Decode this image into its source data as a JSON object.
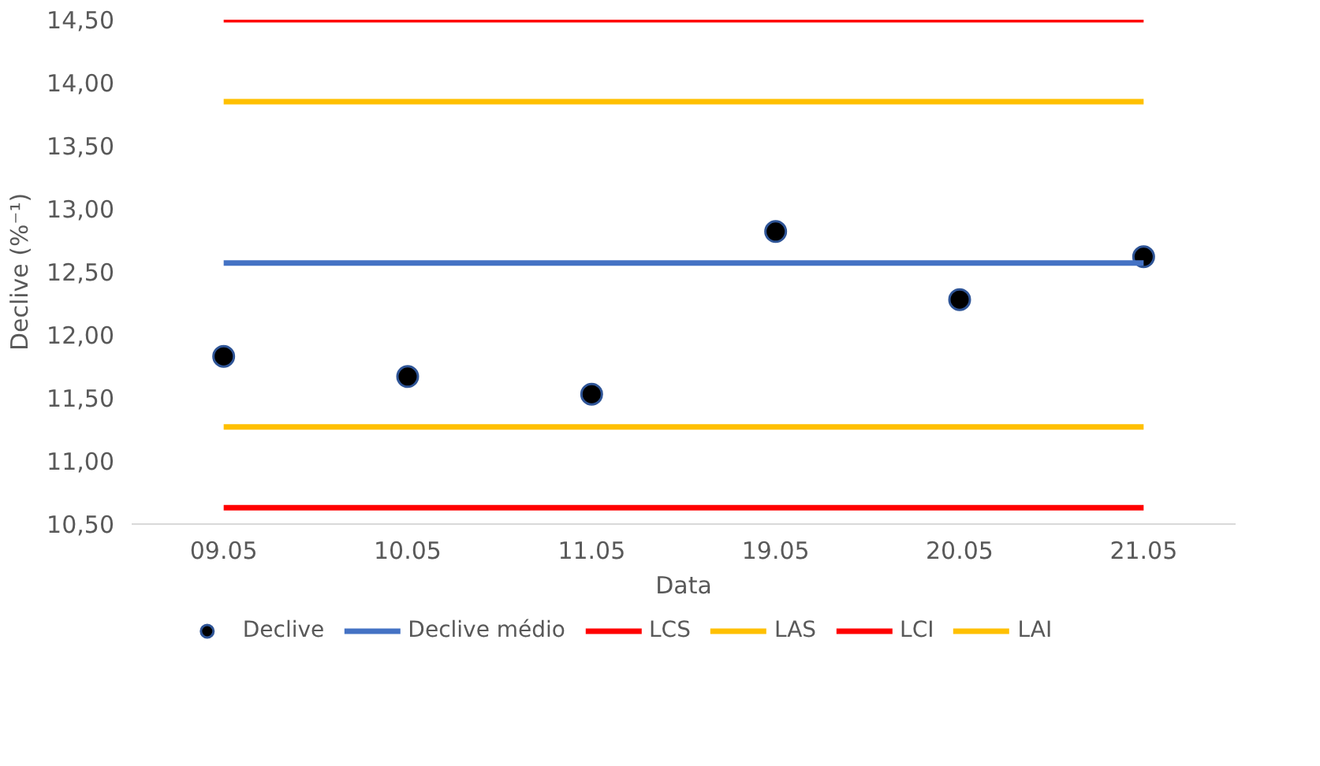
{
  "chart_data": {
    "type": "scatter",
    "xlabel": "Data",
    "ylabel": "Declive (%⁻¹)",
    "categories": [
      "09.05",
      "10.05",
      "11.05",
      "19.05",
      "20.05",
      "21.05"
    ],
    "series": [
      {
        "name": "Declive",
        "type": "scatter",
        "color": "#000000",
        "marker": "circle",
        "values": [
          11.83,
          11.67,
          11.53,
          12.82,
          12.28,
          12.62
        ]
      },
      {
        "name": "Declive médio",
        "type": "line",
        "color": "#4472c4",
        "values": [
          12.57,
          12.57,
          12.57,
          12.57,
          12.57,
          12.57
        ]
      },
      {
        "name": "LCS",
        "type": "line",
        "color": "#ff0000",
        "values": [
          14.5,
          14.5,
          14.5,
          14.5,
          14.5,
          14.5
        ]
      },
      {
        "name": "LAS",
        "type": "line",
        "color": "#ffc000",
        "values": [
          13.85,
          13.85,
          13.85,
          13.85,
          13.85,
          13.85
        ]
      },
      {
        "name": "LCI",
        "type": "line",
        "color": "#ff0000",
        "values": [
          10.63,
          10.63,
          10.63,
          10.63,
          10.63,
          10.63
        ]
      },
      {
        "name": "LAI",
        "type": "line",
        "color": "#ffc000",
        "values": [
          11.27,
          11.27,
          11.27,
          11.27,
          11.27,
          11.27
        ]
      }
    ],
    "ylim": [
      10.5,
      14.5
    ],
    "yticks": [
      {
        "value": 10.5,
        "label": "10,50"
      },
      {
        "value": 11,
        "label": "11,00"
      },
      {
        "value": 11.5,
        "label": "11,50"
      },
      {
        "value": 12,
        "label": "12,00"
      },
      {
        "value": 12.5,
        "label": "12,50"
      },
      {
        "value": 13,
        "label": "13,00"
      },
      {
        "value": 13.5,
        "label": "13,50"
      },
      {
        "value": 14,
        "label": "14,00"
      },
      {
        "value": 14.5,
        "label": "14,50"
      }
    ],
    "grid": false,
    "legend": "bottom"
  }
}
